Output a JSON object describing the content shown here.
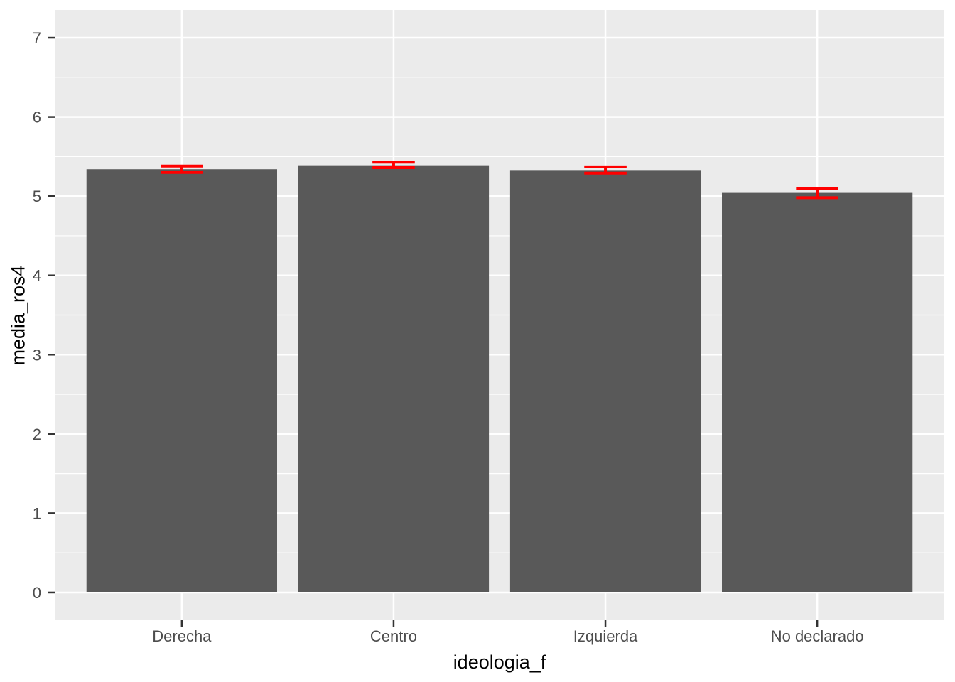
{
  "chart_data": {
    "type": "bar",
    "title": "",
    "xlabel": "ideologia_f",
    "ylabel": "media_ros4",
    "categories": [
      "Derecha",
      "Centro",
      "Izquierda",
      "No declarado"
    ],
    "values": [
      5.34,
      5.39,
      5.33,
      5.05
    ],
    "error_low": [
      5.3,
      5.36,
      5.29,
      4.98
    ],
    "error_high": [
      5.38,
      5.43,
      5.37,
      5.1
    ],
    "yticks": [
      0,
      1,
      2,
      3,
      4,
      5,
      6,
      7
    ],
    "ylim": [
      -0.35,
      7.35
    ],
    "bar_width_fraction": 0.9,
    "errorbar_width_fraction": 0.2,
    "grid": "white major and minor horizontal lines, white vertical major lines at category centers, on grey panel",
    "legend": "none",
    "colors": {
      "bar_fill": "#595959",
      "error_bar": "#FF0000",
      "panel_background": "#EBEBEB",
      "grid_major": "#FFFFFF",
      "grid_minor": "#FFFFFF",
      "tick_mark": "#333333",
      "tick_label": "#4D4D4D",
      "axis_title": "#000000",
      "figure_background": "#FFFFFF"
    }
  }
}
